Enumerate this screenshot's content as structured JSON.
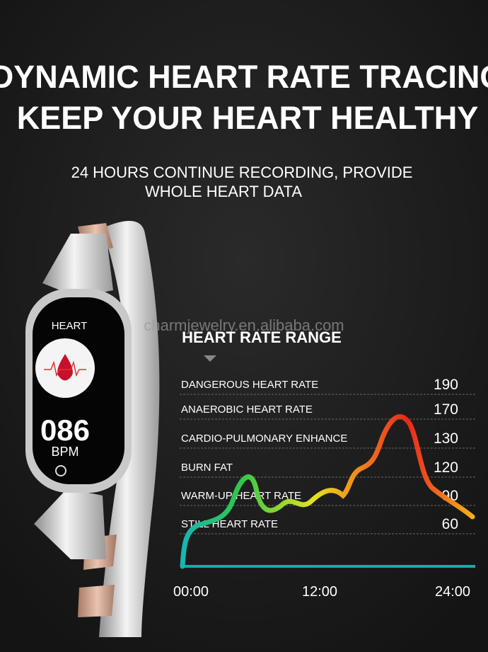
{
  "header": {
    "title_lines": [
      "DYNAMIC HEART RATE TRACING",
      "KEEP YOUR HEART HEALTHY"
    ],
    "subtitle_lines": [
      "24 HOURS CONTINUE RECORDING, PROVIDE",
      "WHOLE HEART DATA"
    ]
  },
  "watch": {
    "screen_label": "HEART",
    "reading": "086",
    "unit": "BPM"
  },
  "watermark": "charmjewelry.en.alibaba.com",
  "panel": {
    "title": "HEART RATE RANGE",
    "zones": [
      {
        "label": "DANGEROUS HEART RATE",
        "value": 190
      },
      {
        "label": "ANAEROBIC HEART RATE",
        "value": 170
      },
      {
        "label": "CARDIO-PULMONARY ENHANCE",
        "value": 130
      },
      {
        "label": "BURN FAT",
        "value": 120
      },
      {
        "label": "WARM-UP HEART RATE",
        "value": 90
      },
      {
        "label": "STILL HEART RATE",
        "value": 60
      }
    ],
    "time_labels": [
      "00:00",
      "12:00",
      "24:00"
    ]
  }
}
